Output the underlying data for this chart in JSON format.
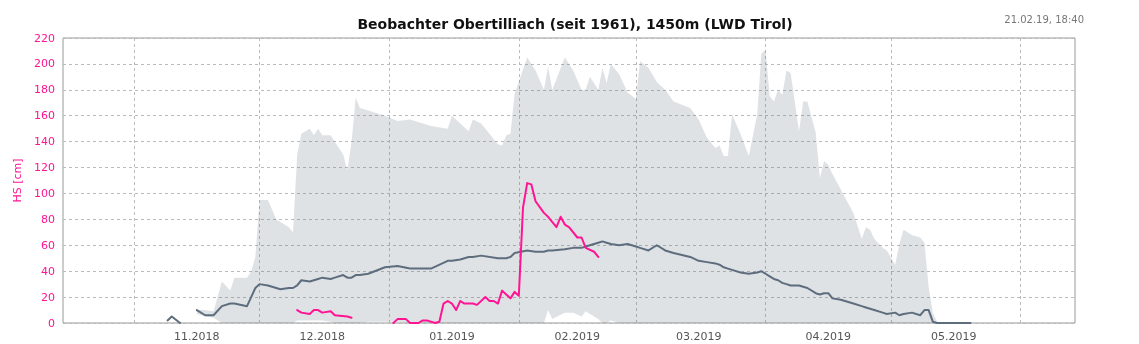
{
  "chart_data": {
    "type": "line",
    "title": "Beobachter Obertilliach (seit 1961), 1450m (LWD Tirol)",
    "ylabel": "HS [cm]",
    "annotations": [
      "21.02.19, 18:40"
    ],
    "xlim": [
      "2018-10-15",
      "2019-06-14"
    ],
    "xticks": [
      {
        "value": "2018-11-01",
        "label": null
      },
      {
        "value": "2018-11-16",
        "label": "11.2018"
      },
      {
        "value": "2018-12-01",
        "label": null
      },
      {
        "value": "2018-12-16",
        "label": "12.2018"
      },
      {
        "value": "2019-01-01",
        "label": null
      },
      {
        "value": "2019-01-16",
        "label": "01.2019"
      },
      {
        "value": "2019-02-01",
        "label": null
      },
      {
        "value": "2019-02-15",
        "label": "02.2019"
      },
      {
        "value": "2019-03-01",
        "label": null
      },
      {
        "value": "2019-03-16",
        "label": "03.2019"
      },
      {
        "value": "2019-04-01",
        "label": null
      },
      {
        "value": "2019-04-16",
        "label": "04.2019"
      },
      {
        "value": "2019-05-01",
        "label": null
      },
      {
        "value": "2019-05-16",
        "label": "05.2019"
      },
      {
        "value": "2019-06-01",
        "label": null
      }
    ],
    "ylim": [
      0,
      220
    ],
    "yticks": [
      0,
      20,
      40,
      60,
      80,
      100,
      120,
      140,
      160,
      180,
      200,
      220
    ],
    "grid": true,
    "marker": "none",
    "line_style": "solid",
    "series": [
      {
        "color": "#5d6d7e",
        "x": [
          "2018-11-09",
          "2018-11-10",
          "2018-11-12",
          "2018-11-14",
          "2018-11-16",
          "2018-11-18",
          "2018-11-20",
          "2018-11-22",
          "2018-11-24",
          "2018-11-25",
          "2018-11-28",
          "2018-11-29",
          "2018-11-30",
          "2018-12-01",
          "2018-12-03",
          "2018-12-05",
          "2018-12-06",
          "2018-12-08",
          "2018-12-09",
          "2018-12-10",
          "2018-12-11",
          "2018-12-13",
          "2018-12-14",
          "2018-12-15",
          "2018-12-16",
          "2018-12-18",
          "2018-12-19",
          "2018-12-21",
          "2018-12-22",
          "2018-12-23",
          "2018-12-24",
          "2018-12-25",
          "2018-12-27",
          "2018-12-31",
          "2019-01-03",
          "2019-01-06",
          "2019-01-11",
          "2019-01-15",
          "2019-01-16",
          "2019-01-18",
          "2019-01-20",
          "2019-01-21",
          "2019-01-23",
          "2019-01-27",
          "2019-01-28",
          "2019-01-29",
          "2019-01-30",
          "2019-01-31",
          "2019-02-03",
          "2019-02-05",
          "2019-02-07",
          "2019-02-08",
          "2019-02-09",
          "2019-02-12",
          "2019-02-14",
          "2019-02-16",
          "2019-02-17",
          "2019-02-18",
          "2019-02-20",
          "2019-02-21",
          "2019-02-22",
          "2019-02-23",
          "2019-02-25",
          "2019-02-27",
          "2019-03-01",
          "2019-03-02",
          "2019-03-04",
          "2019-03-06",
          "2019-03-08",
          "2019-03-10",
          "2019-03-14",
          "2019-03-16",
          "2019-03-18",
          "2019-03-20",
          "2019-03-21",
          "2019-03-22",
          "2019-03-23",
          "2019-03-24",
          "2019-03-26",
          "2019-03-28",
          "2019-03-30",
          "2019-03-31",
          "2019-04-01",
          "2019-04-02",
          "2019-04-03",
          "2019-04-04",
          "2019-04-05",
          "2019-04-06",
          "2019-04-07",
          "2019-04-09",
          "2019-04-10",
          "2019-04-11",
          "2019-04-13",
          "2019-04-14",
          "2019-04-15",
          "2019-04-16",
          "2019-04-17",
          "2019-04-19",
          "2019-04-22",
          "2019-04-24",
          "2019-04-25",
          "2019-04-26",
          "2019-04-27",
          "2019-04-29",
          "2019-04-30",
          "2019-05-02",
          "2019-05-03",
          "2019-05-04",
          "2019-05-06",
          "2019-05-08",
          "2019-05-09",
          "2019-05-10",
          "2019-05-11",
          "2019-05-12",
          "2019-05-13",
          "2019-05-20"
        ],
        "values": [
          2,
          5,
          0,
          null,
          10,
          6,
          6,
          13,
          15,
          15,
          13,
          20,
          27,
          30,
          29,
          27,
          26,
          27,
          27,
          29,
          33,
          32,
          33,
          34,
          35,
          34,
          35,
          37,
          35,
          35,
          37,
          37,
          38,
          43,
          44,
          42,
          42,
          48,
          48,
          49,
          51,
          51,
          52,
          50,
          50,
          50,
          51,
          54,
          56,
          55,
          55,
          56,
          56,
          57,
          58,
          58,
          59,
          60,
          62,
          63,
          62,
          61,
          60,
          61,
          59,
          58,
          56,
          60,
          56,
          54,
          51,
          48,
          47,
          46,
          45,
          43,
          42,
          41,
          39,
          38,
          39,
          40,
          38,
          36,
          34,
          33,
          31,
          30,
          29,
          29,
          28,
          27,
          23,
          22,
          23,
          23,
          19,
          18,
          15,
          13,
          12,
          11,
          10,
          8,
          7,
          8,
          6,
          7,
          8,
          6,
          10,
          10,
          1,
          0,
          0,
          0
        ],
        "lower": [
          null,
          null,
          null,
          null,
          7,
          5,
          4,
          0,
          0,
          0,
          0,
          0,
          0,
          0,
          0,
          0,
          0,
          0,
          0,
          2,
          2,
          2,
          2,
          2,
          2,
          1,
          0,
          0,
          0,
          0,
          0,
          0,
          1,
          1,
          1,
          0,
          0,
          0,
          0,
          0,
          0,
          0,
          0,
          0,
          0,
          0,
          0,
          0,
          0,
          0,
          0,
          10,
          3,
          8,
          8,
          5,
          9,
          7,
          3,
          0,
          0,
          2,
          0,
          0,
          0,
          0,
          0,
          0,
          0,
          0,
          0,
          0,
          0,
          0,
          0,
          0,
          0,
          0,
          0,
          0,
          0,
          0,
          0,
          0,
          0,
          0,
          0,
          0,
          0,
          0,
          0,
          0,
          0,
          0,
          0,
          0,
          0,
          0,
          0,
          0,
          0,
          0,
          0,
          0,
          0,
          0,
          0,
          0,
          0,
          0,
          0,
          0,
          0,
          0,
          0,
          null
        ],
        "upper": [
          null,
          null,
          null,
          null,
          10,
          10,
          9,
          32,
          25,
          35,
          35,
          40,
          51,
          95,
          95,
          80,
          78,
          74,
          70,
          130,
          146,
          150,
          145,
          150,
          145,
          145,
          140,
          130,
          118,
          140,
          174,
          166,
          164,
          160,
          156,
          157,
          152,
          150,
          160,
          154,
          148,
          157,
          154,
          138,
          137,
          145,
          146,
          177,
          205,
          195,
          180,
          198,
          180,
          205,
          195,
          180,
          180,
          190,
          180,
          197,
          185,
          200,
          192,
          178,
          173,
          202,
          197,
          186,
          180,
          171,
          166,
          157,
          143,
          135,
          137,
          129,
          129,
          161,
          146,
          129,
          161,
          208,
          211,
          175,
          171,
          180,
          176,
          195,
          193,
          148,
          171,
          171,
          147,
          112,
          125,
          122,
          115,
          103,
          85,
          65,
          74,
          72,
          65,
          58,
          56,
          45,
          61,
          72,
          68,
          66,
          62,
          28,
          8,
          1,
          0,
          null
        ]
      },
      {
        "color": "#ff1493",
        "x": [
          "2018-12-10",
          "2018-12-11",
          "2018-12-13",
          "2018-12-14",
          "2018-12-15",
          "2018-12-16",
          "2018-12-18",
          "2018-12-19",
          "2018-12-22",
          "2018-12-23",
          "2018-12-27",
          "2019-01-02",
          "2019-01-03",
          "2019-01-05",
          "2019-01-06",
          "2019-01-08",
          "2019-01-09",
          "2019-01-10",
          "2019-01-12",
          "2019-01-13",
          "2019-01-14",
          "2019-01-15",
          "2019-01-16",
          "2019-01-17",
          "2019-01-18",
          "2019-01-19",
          "2019-01-21",
          "2019-01-22",
          "2019-01-24",
          "2019-01-25",
          "2019-01-26",
          "2019-01-27",
          "2019-01-28",
          "2019-01-29",
          "2019-01-30",
          "2019-01-31",
          "2019-02-01",
          "2019-02-02",
          "2019-02-03",
          "2019-02-04",
          "2019-02-05",
          "2019-02-07",
          "2019-02-08",
          "2019-02-10",
          "2019-02-11",
          "2019-02-12",
          "2019-02-13",
          "2019-02-15",
          "2019-02-16",
          "2019-02-17",
          "2019-02-19",
          "2019-02-20"
        ],
        "values": [
          10,
          8,
          7,
          10,
          10,
          8,
          9,
          6,
          5,
          4,
          null,
          0,
          3,
          3,
          0,
          0,
          2,
          2,
          0,
          1,
          15,
          17,
          15,
          10,
          17,
          15,
          15,
          14,
          20,
          17,
          17,
          15,
          25,
          22,
          19,
          24,
          21,
          89,
          108,
          107,
          94,
          85,
          82,
          74,
          82,
          76,
          74,
          66,
          66,
          58,
          55,
          51
        ]
      }
    ]
  }
}
